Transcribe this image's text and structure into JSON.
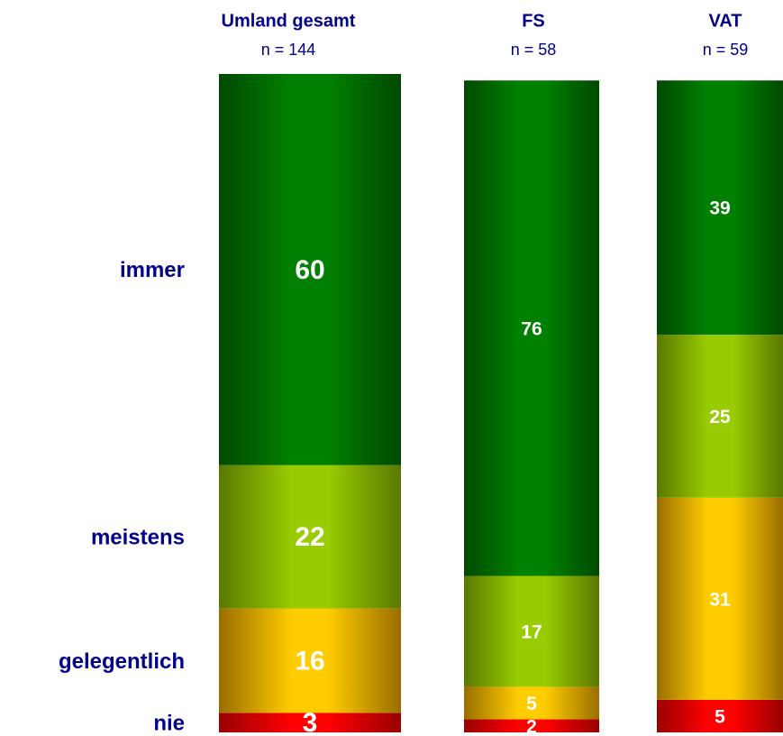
{
  "chart_data": {
    "type": "stacked_bar",
    "categories": [
      "Umland gesamt",
      "FS",
      "VAT"
    ],
    "subtitles": [
      "n = 144",
      "n = 58",
      "n = 59"
    ],
    "ylim": [
      0,
      101
    ],
    "series": [
      {
        "name": "nie",
        "color": "#ff0000",
        "edge_color": "#990000",
        "values": [
          3,
          2,
          5
        ]
      },
      {
        "name": "gelegentlich",
        "color": "#ffcc00",
        "edge_color": "#9a6e00",
        "values": [
          16,
          5,
          31
        ]
      },
      {
        "name": "meistens",
        "color": "#99cc00",
        "edge_color": "#5a7800",
        "values": [
          22,
          17,
          25
        ]
      },
      {
        "name": "immer",
        "color": "#008000",
        "edge_color": "#004a00",
        "values": [
          60,
          76,
          39
        ]
      }
    ]
  }
}
